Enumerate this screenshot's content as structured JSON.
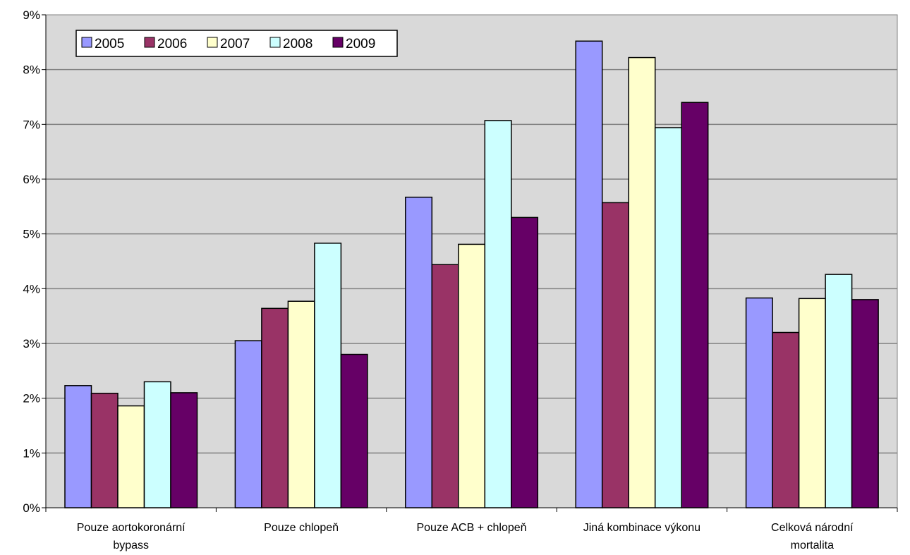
{
  "chart_data": {
    "type": "bar",
    "title": "",
    "xlabel": "",
    "ylabel": "",
    "ylim": [
      0,
      9
    ],
    "yticks": [
      "0%",
      "1%",
      "2%",
      "3%",
      "4%",
      "5%",
      "6%",
      "7%",
      "8%",
      "9%"
    ],
    "categories": [
      [
        "Pouze aortokoronární",
        "bypass"
      ],
      [
        "Pouze chlopeň"
      ],
      [
        "Pouze ACB + chlopeň"
      ],
      [
        "Jiná kombinace výkonu"
      ],
      [
        "Celková národní",
        "mortalita"
      ]
    ],
    "series": [
      {
        "name": "2005",
        "color": "#9999ff",
        "values": [
          2.23,
          3.05,
          5.67,
          8.52,
          3.83
        ]
      },
      {
        "name": "2006",
        "color": "#993366",
        "values": [
          2.09,
          3.64,
          4.44,
          5.57,
          3.2
        ]
      },
      {
        "name": "2007",
        "color": "#ffffcc",
        "values": [
          1.86,
          3.77,
          4.81,
          8.22,
          3.82
        ]
      },
      {
        "name": "2008",
        "color": "#ccffff",
        "values": [
          2.3,
          4.83,
          7.07,
          6.94,
          4.26
        ]
      },
      {
        "name": "2009",
        "color": "#660066",
        "values": [
          2.1,
          2.8,
          5.3,
          7.4,
          3.8
        ]
      }
    ],
    "grid": true,
    "legend_position": "top-left",
    "plot_background": "#d9d9d9"
  }
}
